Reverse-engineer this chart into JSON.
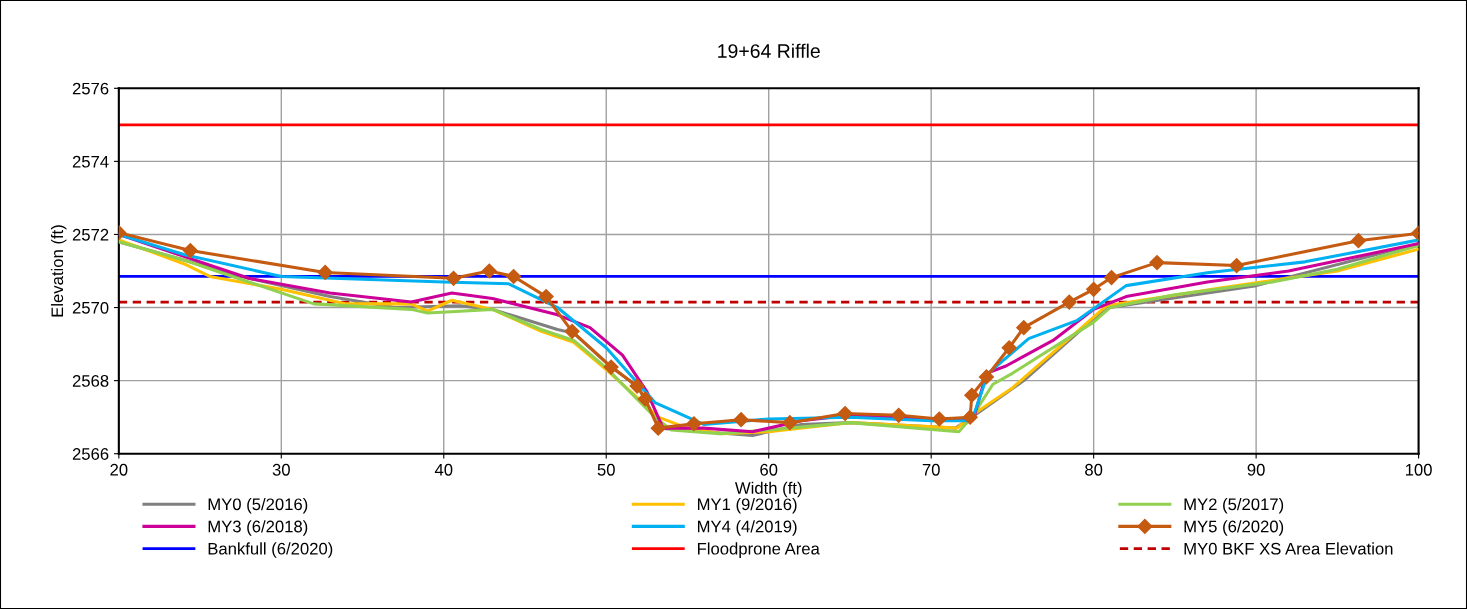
{
  "chart_data": {
    "type": "line",
    "title": "19+64 Riffle",
    "xlabel": "Width (ft)",
    "ylabel": "Elevation (ft)",
    "xlim": [
      20,
      100
    ],
    "xticks": [
      20,
      30,
      40,
      50,
      60,
      70,
      80,
      90,
      100
    ],
    "ylim": [
      2566,
      2576
    ],
    "yticks": [
      2566,
      2568,
      2570,
      2572,
      2574,
      2576
    ],
    "grid": true,
    "legend": "bottom",
    "marker": "none",
    "line_style": "solid",
    "series": [
      {
        "name": "MY0 (5/2016)",
        "color": "#808080",
        "x": [
          20,
          24,
          28,
          33,
          37,
          41,
          43,
          47,
          48,
          50,
          52,
          53.3,
          56,
          59,
          62,
          65,
          71.5,
          72.5,
          75.7,
          80,
          81,
          90,
          100
        ],
        "values": [
          2571.8,
          2571.3,
          2570.8,
          2570.3,
          2570.0,
          2570.05,
          2569.95,
          2569.4,
          2569.3,
          2568.5,
          2567.8,
          2566.7,
          2566.6,
          2566.5,
          2566.8,
          2566.85,
          2566.7,
          2567.0,
          2568.0,
          2569.7,
          2570.0,
          2570.6,
          2571.75
        ]
      },
      {
        "name": "MY1 (9/2016)",
        "color": "#ffc000",
        "x": [
          20,
          24,
          25.6,
          30,
          34,
          38,
          39,
          40.5,
          43,
          46,
          48,
          50,
          52,
          53.2,
          55,
          57,
          60,
          63,
          65,
          71.6,
          72.5,
          75,
          79,
          80.8,
          88,
          95,
          100
        ],
        "values": [
          2571.85,
          2571.2,
          2570.85,
          2570.5,
          2570.1,
          2570.1,
          2569.9,
          2570.2,
          2569.95,
          2569.35,
          2569.05,
          2568.3,
          2567.5,
          2567.0,
          2566.7,
          2566.55,
          2566.6,
          2566.75,
          2566.85,
          2566.7,
          2567.05,
          2567.8,
          2569.35,
          2570.05,
          2570.55,
          2571.0,
          2571.6
        ]
      },
      {
        "name": "MY2 (5/2017)",
        "color": "#92d050",
        "x": [
          20,
          24,
          28,
          32,
          38,
          39,
          41,
          43,
          46,
          48,
          50,
          53,
          54,
          57,
          60,
          65,
          71.7,
          72.5,
          73.8,
          75,
          80,
          81,
          85,
          91,
          95,
          100
        ],
        "values": [
          2571.8,
          2571.3,
          2570.7,
          2570.1,
          2569.95,
          2569.85,
          2569.9,
          2569.95,
          2569.4,
          2569.1,
          2568.35,
          2567.0,
          2566.65,
          2566.55,
          2566.65,
          2566.85,
          2566.6,
          2567.0,
          2567.9,
          2568.2,
          2569.6,
          2570.0,
          2570.35,
          2570.7,
          2571.05,
          2571.7
        ]
      },
      {
        "name": "MY3 (6/2018)",
        "color": "#cc0099",
        "x": [
          20,
          24,
          28,
          33,
          38,
          40.5,
          43,
          47,
          49,
          51,
          52.5,
          53.5,
          56,
          59,
          62,
          65,
          70,
          72.6,
          73.4,
          74.6,
          77.5,
          80,
          82,
          87,
          92,
          100
        ],
        "values": [
          2572.0,
          2571.4,
          2570.8,
          2570.4,
          2570.15,
          2570.4,
          2570.25,
          2569.8,
          2569.45,
          2568.7,
          2567.7,
          2566.7,
          2566.7,
          2566.6,
          2566.9,
          2567.05,
          2566.95,
          2566.95,
          2568.2,
          2568.4,
          2569.1,
          2569.95,
          2570.3,
          2570.7,
          2571.0,
          2571.75
        ]
      },
      {
        "name": "MY4 (4/2019)",
        "color": "#00b0f0",
        "x": [
          20,
          24,
          30,
          40,
          44,
          47,
          50,
          53,
          56,
          60,
          65,
          70,
          72.5,
          73.5,
          76,
          79,
          82,
          87,
          93,
          100
        ],
        "values": [
          2572.0,
          2571.45,
          2570.85,
          2570.7,
          2570.65,
          2570.0,
          2568.9,
          2567.4,
          2566.8,
          2566.95,
          2567.0,
          2566.9,
          2566.9,
          2568.2,
          2569.15,
          2569.65,
          2570.6,
          2570.95,
          2571.25,
          2571.85
        ]
      },
      {
        "name": "MY5 (6/2020)",
        "color": "#c55a11",
        "marker": "diamond",
        "x": [
          20,
          24.4,
          32.7,
          40.6,
          42.8,
          44.3,
          46.3,
          47.9,
          50.3,
          51.9,
          52.4,
          53.2,
          55.4,
          58.3,
          61.3,
          64.7,
          68.0,
          70.5,
          72.4,
          72.5,
          73.4,
          74.8,
          75.7,
          78.5,
          80.0,
          81.1,
          83.9,
          88.8,
          96.3,
          100
        ],
        "values": [
          2572.05,
          2571.56,
          2570.96,
          2570.8,
          2571.0,
          2570.85,
          2570.3,
          2569.35,
          2568.37,
          2567.85,
          2567.5,
          2566.7,
          2566.82,
          2566.93,
          2566.85,
          2567.1,
          2567.05,
          2566.95,
          2567.0,
          2567.6,
          2568.1,
          2568.9,
          2569.45,
          2570.15,
          2570.5,
          2570.82,
          2571.23,
          2571.15,
          2571.83,
          2572.03
        ]
      }
    ],
    "ref_lines": [
      {
        "axis": "y",
        "value": 2570.85,
        "label": "Bankfull (6/2020)",
        "color": "#0000ff",
        "line_style": "solid"
      },
      {
        "axis": "y",
        "value": 2575.0,
        "label": "Floodprone Area",
        "color": "#ff0000",
        "line_style": "solid"
      },
      {
        "axis": "y",
        "value": 2570.15,
        "label": "MY0 BKF XS Area Elevation",
        "color": "#c00000",
        "line_style": "dashed"
      }
    ]
  }
}
